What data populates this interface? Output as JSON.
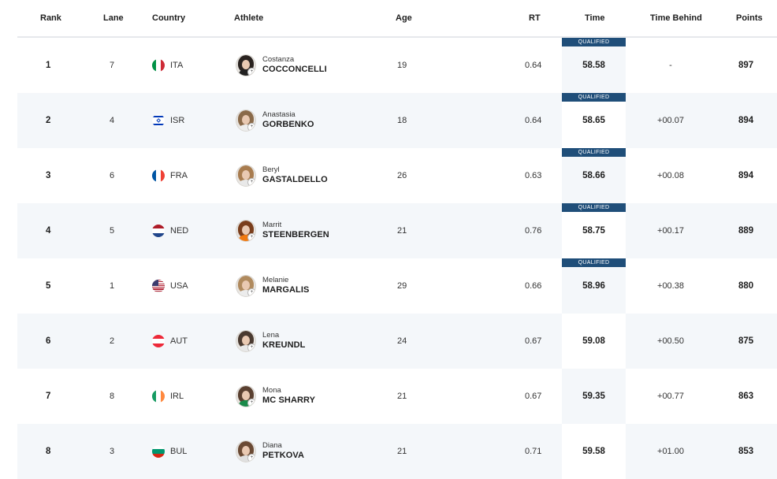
{
  "headers": {
    "rank": "Rank",
    "lane": "Lane",
    "country": "Country",
    "athlete": "Athlete",
    "age": "Age",
    "rt": "RT",
    "time": "Time",
    "time_behind": "Time Behind",
    "points": "Points"
  },
  "rows": [
    {
      "rank": "1",
      "lane": "7",
      "country": "ITA",
      "first": "Costanza",
      "last": "COCCONCELLI",
      "age": "19",
      "rt": "0.64",
      "time": "58.58",
      "behind": "-",
      "points": "897",
      "qualified": "QUALIFIED",
      "flag": "ita",
      "hair": "#2a2320",
      "shirt": "#222"
    },
    {
      "rank": "2",
      "lane": "4",
      "country": "ISR",
      "first": "Anastasia",
      "last": "GORBENKO",
      "age": "18",
      "rt": "0.64",
      "time": "58.65",
      "behind": "+00.07",
      "points": "894",
      "qualified": "QUALIFIED",
      "flag": "isr",
      "hair": "#8a6a4a",
      "shirt": "#eeeeee"
    },
    {
      "rank": "3",
      "lane": "6",
      "country": "FRA",
      "first": "Beryl",
      "last": "GASTALDELLO",
      "age": "26",
      "rt": "0.63",
      "time": "58.66",
      "behind": "+00.08",
      "points": "894",
      "qualified": "QUALIFIED",
      "flag": "fra",
      "hair": "#a87c4f",
      "shirt": "#e9e9e9"
    },
    {
      "rank": "4",
      "lane": "5",
      "country": "NED",
      "first": "Marrit",
      "last": "STEENBERGEN",
      "age": "21",
      "rt": "0.76",
      "time": "58.75",
      "behind": "+00.17",
      "points": "889",
      "qualified": "QUALIFIED",
      "flag": "ned",
      "hair": "#7a3e1c",
      "shirt": "#f07a12"
    },
    {
      "rank": "5",
      "lane": "1",
      "country": "USA",
      "first": "Melanie",
      "last": "MARGALIS",
      "age": "29",
      "rt": "0.66",
      "time": "58.96",
      "behind": "+00.38",
      "points": "880",
      "qualified": "QUALIFIED",
      "flag": "usa",
      "hair": "#b08a5e",
      "shirt": "#ececec"
    },
    {
      "rank": "6",
      "lane": "2",
      "country": "AUT",
      "first": "Lena",
      "last": "KREUNDL",
      "age": "24",
      "rt": "0.67",
      "time": "59.08",
      "behind": "+00.50",
      "points": "875",
      "qualified": "",
      "flag": "aut",
      "hair": "#4a3a30",
      "shirt": "#e8e8e8"
    },
    {
      "rank": "7",
      "lane": "8",
      "country": "IRL",
      "first": "Mona",
      "last": "MC SHARRY",
      "age": "21",
      "rt": "0.67",
      "time": "59.35",
      "behind": "+00.77",
      "points": "863",
      "qualified": "",
      "flag": "irl",
      "hair": "#5a4030",
      "shirt": "#1a8a4a"
    },
    {
      "rank": "8",
      "lane": "3",
      "country": "BUL",
      "first": "Diana",
      "last": "PETKOVA",
      "age": "21",
      "rt": "0.71",
      "time": "59.58",
      "behind": "+01.00",
      "points": "853",
      "qualified": "",
      "flag": "bul",
      "hair": "#6a4a34",
      "shirt": "#e0e0e0"
    }
  ]
}
